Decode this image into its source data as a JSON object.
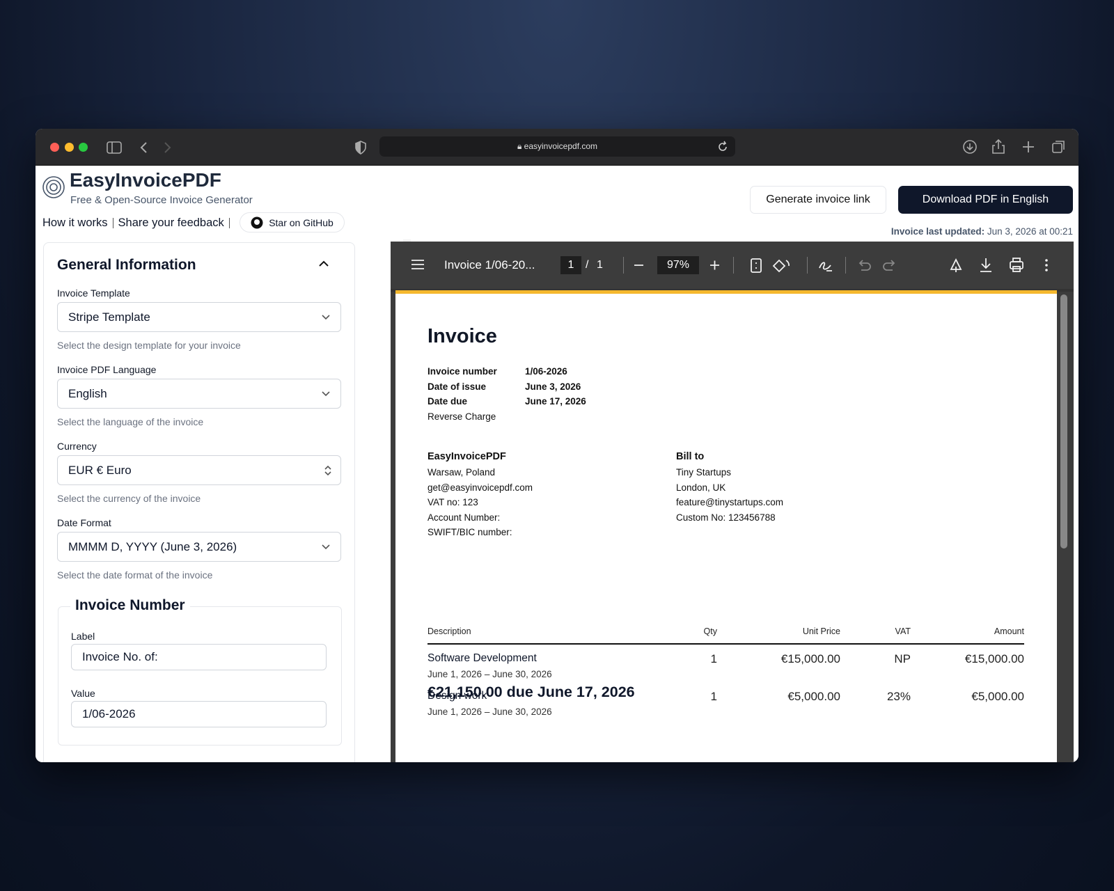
{
  "browser": {
    "url": "easyinvoicepdf.com"
  },
  "header": {
    "brand": "EasyInvoicePDF",
    "tagline": "Free & Open-Source Invoice Generator",
    "nav": [
      "How it works",
      "Share your feedback"
    ],
    "github": "Star on GitHub",
    "buttons": [
      "Generate invoice link",
      "Download PDF in English"
    ],
    "updated_label": "Invoice last updated:",
    "updated_value": "Jun 3, 2026 at 00:21"
  },
  "form": {
    "section": "General Information",
    "fields": [
      {
        "label": "Invoice Template",
        "value": "Stripe Template",
        "help": "Select the design template for your invoice"
      },
      {
        "label": "Invoice PDF Language",
        "value": "English",
        "help": "Select the language of the invoice"
      },
      {
        "label": "Currency",
        "value": "EUR € Euro",
        "help": "Select the currency of the invoice"
      },
      {
        "label": "Date Format",
        "value": "MMMM D, YYYY (June 3, 2026)",
        "help": "Select the date format of the invoice"
      }
    ],
    "invoice_number": {
      "title": "Invoice Number",
      "fields": [
        {
          "label": "Label",
          "value": "Invoice No. of:"
        },
        {
          "label": "Value",
          "value": "1/06-2026"
        }
      ]
    }
  },
  "viewer": {
    "title": "Invoice 1/06-20...",
    "page": "1",
    "separator": "/",
    "pages": "1",
    "zoom": "97%"
  },
  "invoice": {
    "heading": "Invoice",
    "meta": [
      {
        "key": "Invoice number",
        "value": "1/06-2026"
      },
      {
        "key": "Date of issue",
        "value": "June 3, 2026"
      },
      {
        "key": "Date due",
        "value": "June 17, 2026"
      },
      {
        "key": "Reverse Charge"
      }
    ],
    "seller": {
      "name": "EasyInvoicePDF",
      "lines": [
        "Warsaw, Poland",
        "get@easyinvoicepdf.com",
        "VAT no: 123",
        "Account Number:",
        "SWIFT/BIC number:"
      ]
    },
    "bill_to": {
      "title": "Bill to",
      "lines": [
        "Tiny Startups",
        "London, UK",
        "feature@tinystartups.com",
        "Custom No: 123456788"
      ]
    },
    "due": "€21,150.00 due June 17, 2026",
    "table": {
      "headers": [
        "Description",
        "Qty",
        "Unit Price",
        "VAT",
        "Amount"
      ],
      "rows": [
        {
          "description": "Software Development",
          "period": "June 1, 2026 – June 30, 2026",
          "qty": "1",
          "unit_price": "€15,000.00",
          "vat": "NP",
          "amount": "€15,000.00"
        },
        {
          "description": "Design work",
          "period": "June 1, 2026 – June 30, 2026",
          "qty": "1",
          "unit_price": "€5,000.00",
          "vat": "23%",
          "amount": "€5,000.00"
        }
      ]
    }
  }
}
